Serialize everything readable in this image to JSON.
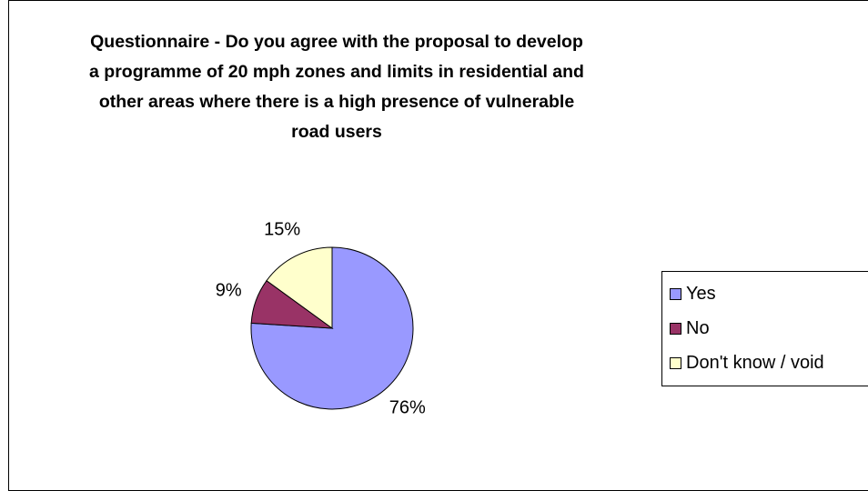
{
  "chart_data": {
    "type": "pie",
    "title_lines": [
      "Questionnaire - Do you agree with the proposal to develop",
      "a programme of 20 mph zones and limits in residential and",
      "other areas where there is a high presence of vulnerable",
      "road users"
    ],
    "slices": [
      {
        "label": "Yes",
        "value": 76,
        "value_label": "76%",
        "color": "#9999FF"
      },
      {
        "label": "No",
        "value": 9,
        "value_label": "9%",
        "color": "#993366"
      },
      {
        "label": "Don't know / void",
        "value": 15,
        "value_label": "15%",
        "color": "#FFFFCC"
      }
    ],
    "legend_position": "right"
  }
}
